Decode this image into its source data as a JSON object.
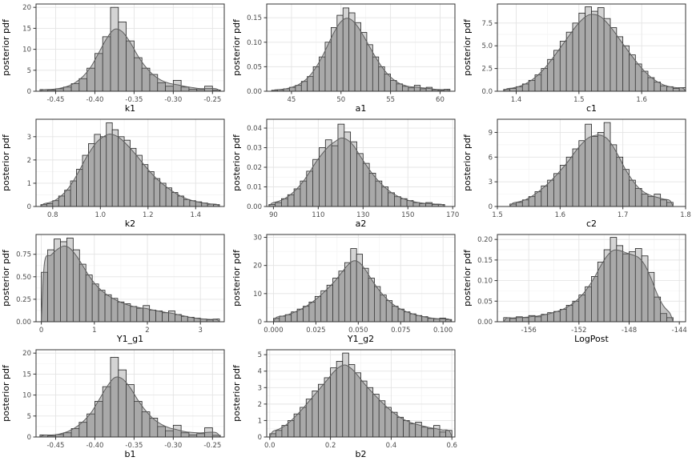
{
  "figure": {
    "ylabel_shared": "posterior pdf"
  },
  "chart_data": {
    "type": "histogram-grid",
    "columns": 3,
    "ylabel": "posterior pdf",
    "colors": {
      "bar_fill": "#d4d4d4",
      "bar_stroke": "#1f1f1f",
      "density_fill": "rgba(105,105,105,0.40)",
      "density_stroke": "#5f5f5f",
      "grid_major": "#e4e4e4",
      "grid_minor": "#f3f3f3",
      "panel_border": "#333333",
      "tick_text": "#4d4d4d",
      "title_text": "#000000",
      "panel_bg": "#ffffff"
    },
    "plots": [
      {
        "name": "k1",
        "xlabel": "k1",
        "ylabel": "posterior pdf",
        "xlim": [
          -0.475,
          -0.235
        ],
        "ylim": [
          0,
          20.8
        ],
        "x_ticks": {
          "values": [
            -0.45,
            -0.4,
            -0.35,
            -0.3,
            -0.25
          ],
          "labels": [
            "-0.45",
            "-0.40",
            "-0.35",
            "-0.30",
            "-0.25"
          ]
        },
        "y_ticks": {
          "values": [
            0,
            5,
            10,
            15,
            20
          ],
          "labels": [
            "0",
            "5",
            "10",
            "15",
            "20"
          ]
        },
        "bin_start": -0.47,
        "bin_width": 0.01,
        "heights": [
          0.4,
          0.3,
          0.6,
          1.0,
          1.8,
          3.0,
          5.5,
          9.0,
          13.0,
          20.0,
          16.5,
          12.0,
          8.0,
          5.5,
          4.0,
          2.0,
          1.2,
          2.6,
          1.0,
          0.5,
          0.4,
          1.2,
          0.3
        ]
      },
      {
        "name": "a1",
        "xlabel": "a1",
        "ylabel": "posterior pdf",
        "xlim": [
          42.5,
          61.5
        ],
        "ylim": [
          0,
          0.178
        ],
        "x_ticks": {
          "values": [
            45,
            50,
            55,
            60
          ],
          "labels": [
            "45",
            "50",
            "55",
            "60"
          ]
        },
        "y_ticks": {
          "values": [
            0.0,
            0.05,
            0.1,
            0.15
          ],
          "labels": [
            "0.00",
            "0.05",
            "0.10",
            "0.15"
          ]
        },
        "bin_start": 43,
        "bin_width": 0.6,
        "heights": [
          0.002,
          0.003,
          0.005,
          0.008,
          0.012,
          0.02,
          0.03,
          0.05,
          0.07,
          0.1,
          0.13,
          0.155,
          0.17,
          0.16,
          0.14,
          0.12,
          0.095,
          0.07,
          0.05,
          0.035,
          0.022,
          0.015,
          0.01,
          0.007,
          0.012,
          0.005,
          0.008,
          0.003,
          0.002,
          0.004
        ]
      },
      {
        "name": "c1",
        "xlabel": "c1",
        "ylabel": "posterior pdf",
        "xlim": [
          1.37,
          1.67
        ],
        "ylim": [
          0,
          9.6
        ],
        "x_ticks": {
          "values": [
            1.4,
            1.5,
            1.6
          ],
          "labels": [
            "1.4",
            "1.5",
            "1.6"
          ]
        },
        "y_ticks": {
          "values": [
            0.0,
            2.5,
            5.0,
            7.5
          ],
          "labels": [
            "0.0",
            "2.5",
            "5.0",
            "7.5"
          ]
        },
        "bin_start": 1.38,
        "bin_width": 0.01,
        "heights": [
          0.2,
          0.3,
          0.5,
          0.8,
          1.2,
          1.8,
          2.5,
          3.5,
          4.5,
          5.5,
          6.5,
          7.5,
          8.6,
          9.3,
          8.8,
          9.2,
          8.0,
          7.0,
          6.0,
          5.0,
          4.0,
          3.0,
          2.2,
          1.5,
          1.0,
          0.6,
          0.5,
          0.3,
          0.4
        ]
      },
      {
        "name": "k2",
        "xlabel": "k2",
        "ylabel": "posterior pdf",
        "xlim": [
          0.73,
          1.52
        ],
        "ylim": [
          0,
          3.75
        ],
        "x_ticks": {
          "values": [
            0.8,
            1.0,
            1.2,
            1.4
          ],
          "labels": [
            "0.8",
            "1.0",
            "1.2",
            "1.4"
          ]
        },
        "y_ticks": {
          "values": [
            0,
            1,
            2,
            3
          ],
          "labels": [
            "0",
            "1",
            "2",
            "3"
          ]
        },
        "bin_start": 0.75,
        "bin_width": 0.025,
        "heights": [
          0.08,
          0.12,
          0.25,
          0.45,
          0.7,
          1.1,
          1.6,
          2.2,
          2.7,
          3.1,
          3.0,
          3.6,
          3.3,
          3.0,
          2.85,
          2.5,
          2.2,
          1.8,
          1.5,
          1.2,
          1.0,
          0.8,
          0.6,
          0.45,
          0.3,
          0.25,
          0.2,
          0.15,
          0.1,
          0.08
        ]
      },
      {
        "name": "a2",
        "xlabel": "a2",
        "ylabel": "posterior pdf",
        "xlim": [
          87,
          171
        ],
        "ylim": [
          0,
          0.0445
        ],
        "x_ticks": {
          "values": [
            90,
            110,
            130,
            150,
            170
          ],
          "labels": [
            "90",
            "110",
            "130",
            "150",
            "170"
          ]
        },
        "y_ticks": {
          "values": [
            0.0,
            0.01,
            0.02,
            0.03,
            0.04
          ],
          "labels": [
            "0.00",
            "0.01",
            "0.02",
            "0.03",
            "0.04"
          ]
        },
        "bin_start": 88,
        "bin_width": 2.8,
        "heights": [
          0.001,
          0.002,
          0.004,
          0.006,
          0.009,
          0.013,
          0.018,
          0.024,
          0.03,
          0.034,
          0.031,
          0.042,
          0.038,
          0.033,
          0.027,
          0.022,
          0.017,
          0.013,
          0.01,
          0.007,
          0.005,
          0.004,
          0.003,
          0.002,
          0.0015,
          0.002,
          0.001,
          0.001
        ]
      },
      {
        "name": "c2",
        "xlabel": "c2",
        "ylabel": "posterior pdf",
        "xlim": [
          1.5,
          1.8
        ],
        "ylim": [
          0,
          10.6
        ],
        "x_ticks": {
          "values": [
            1.5,
            1.6,
            1.7,
            1.8
          ],
          "labels": [
            "1.5",
            "1.6",
            "1.7",
            "1.8"
          ]
        },
        "y_ticks": {
          "values": [
            0,
            3,
            6,
            9
          ],
          "labels": [
            "0",
            "3",
            "6",
            "9"
          ]
        },
        "bin_start": 1.52,
        "bin_width": 0.01,
        "heights": [
          0.3,
          0.5,
          0.8,
          1.2,
          1.8,
          2.5,
          3.2,
          4.0,
          5.0,
          6.0,
          7.0,
          8.0,
          10.0,
          8.5,
          9.0,
          10.2,
          7.5,
          6.0,
          4.5,
          3.2,
          2.2,
          1.5,
          1.2,
          1.5,
          0.8,
          0.5
        ]
      },
      {
        "name": "Y1_g1",
        "xlabel": "Y1_g1",
        "ylabel": "posterior pdf",
        "xlim": [
          -0.1,
          3.45
        ],
        "ylim": [
          0,
          0.97
        ],
        "x_ticks": {
          "values": [
            0,
            1,
            2,
            3
          ],
          "labels": [
            "0",
            "1",
            "2",
            "3"
          ]
        },
        "y_ticks": {
          "values": [
            0.0,
            0.25,
            0.5,
            0.75
          ],
          "labels": [
            "0.00",
            "0.25",
            "0.50",
            "0.75"
          ]
        },
        "bin_start": 0,
        "bin_width": 0.12,
        "heights": [
          0.55,
          0.8,
          0.92,
          0.89,
          0.93,
          0.8,
          0.64,
          0.52,
          0.42,
          0.35,
          0.3,
          0.26,
          0.22,
          0.2,
          0.17,
          0.15,
          0.18,
          0.13,
          0.12,
          0.1,
          0.12,
          0.08,
          0.06,
          0.05,
          0.04,
          0.03,
          0.02,
          0.03
        ]
      },
      {
        "name": "Y1_g2",
        "xlabel": "Y1_g2",
        "ylabel": "posterior pdf",
        "xlim": [
          -0.004,
          0.107
        ],
        "ylim": [
          0,
          31
        ],
        "x_ticks": {
          "values": [
            0.0,
            0.025,
            0.05,
            0.075,
            0.1
          ],
          "labels": [
            "0.000",
            "0.025",
            "0.050",
            "0.075",
            "0.100"
          ]
        },
        "y_ticks": {
          "values": [
            0,
            10,
            20,
            30
          ],
          "labels": [
            "0",
            "10",
            "20",
            "30"
          ]
        },
        "bin_start": 0,
        "bin_width": 0.0035,
        "heights": [
          1.2,
          2.0,
          2.5,
          3.5,
          4.5,
          5.5,
          7.0,
          9.0,
          11.0,
          13.0,
          15.5,
          18.0,
          21.0,
          26.0,
          24.0,
          19.0,
          15.5,
          12.5,
          9.5,
          7.5,
          5.5,
          4.5,
          3.5,
          2.8,
          2.2,
          1.8,
          1.2,
          1.0,
          1.3,
          0.8
        ]
      },
      {
        "name": "LogPost",
        "xlabel": "LogPost",
        "ylabel": "posterior pdf",
        "xlim": [
          -158.5,
          -143.5
        ],
        "ylim": [
          0,
          0.212
        ],
        "x_ticks": {
          "values": [
            -156,
            -152,
            -148,
            -144
          ],
          "labels": [
            "-156",
            "-152",
            "-148",
            "-144"
          ]
        },
        "y_ticks": {
          "values": [
            0.0,
            0.05,
            0.1,
            0.15,
            0.2
          ],
          "labels": [
            "0.00",
            "0.05",
            "0.10",
            "0.15",
            "0.20"
          ]
        },
        "bin_start": -158,
        "bin_width": 0.5,
        "heights": [
          0.01,
          0.008,
          0.012,
          0.01,
          0.015,
          0.012,
          0.018,
          0.022,
          0.025,
          0.03,
          0.04,
          0.05,
          0.065,
          0.085,
          0.11,
          0.145,
          0.175,
          0.205,
          0.185,
          0.165,
          0.17,
          0.178,
          0.16,
          0.12,
          0.06,
          0.02,
          0.01
        ]
      },
      {
        "name": "b1",
        "xlabel": "b1",
        "ylabel": "posterior pdf",
        "xlim": [
          -0.475,
          -0.235
        ],
        "ylim": [
          0,
          20.8
        ],
        "x_ticks": {
          "values": [
            -0.45,
            -0.4,
            -0.35,
            -0.3,
            -0.25
          ],
          "labels": [
            "-0.45",
            "-0.40",
            "-0.35",
            "-0.30",
            "-0.25"
          ]
        },
        "y_ticks": {
          "values": [
            0,
            5,
            10,
            15,
            20
          ],
          "labels": [
            "0",
            "5",
            "10",
            "15",
            "20"
          ]
        },
        "bin_start": -0.47,
        "bin_width": 0.01,
        "heights": [
          0.5,
          0.3,
          0.6,
          1.0,
          2.0,
          3.5,
          5.5,
          8.5,
          12.0,
          19.0,
          16.0,
          12.5,
          8.5,
          6.0,
          4.5,
          2.5,
          1.5,
          2.8,
          1.0,
          0.5,
          0.8,
          2.2,
          0.4
        ]
      },
      {
        "name": "b2",
        "xlabel": "b2",
        "ylabel": "posterior pdf",
        "xlim": [
          -0.01,
          0.61
        ],
        "ylim": [
          0,
          5.3
        ],
        "x_ticks": {
          "values": [
            0.0,
            0.2,
            0.4,
            0.6
          ],
          "labels": [
            "0.0",
            "0.2",
            "0.4",
            "0.6"
          ]
        },
        "y_ticks": {
          "values": [
            0,
            1,
            2,
            3,
            4,
            5
          ],
          "labels": [
            "0",
            "1",
            "2",
            "3",
            "4",
            "5"
          ]
        },
        "bin_start": 0,
        "bin_width": 0.02,
        "heights": [
          0.2,
          0.4,
          0.7,
          1.0,
          1.4,
          1.8,
          2.3,
          2.8,
          3.2,
          3.6,
          4.2,
          4.6,
          5.1,
          4.4,
          3.9,
          3.4,
          3.0,
          2.6,
          2.2,
          1.8,
          1.5,
          1.2,
          1.0,
          0.8,
          0.9,
          0.6,
          0.5,
          0.7,
          0.3,
          0.4
        ]
      }
    ]
  }
}
